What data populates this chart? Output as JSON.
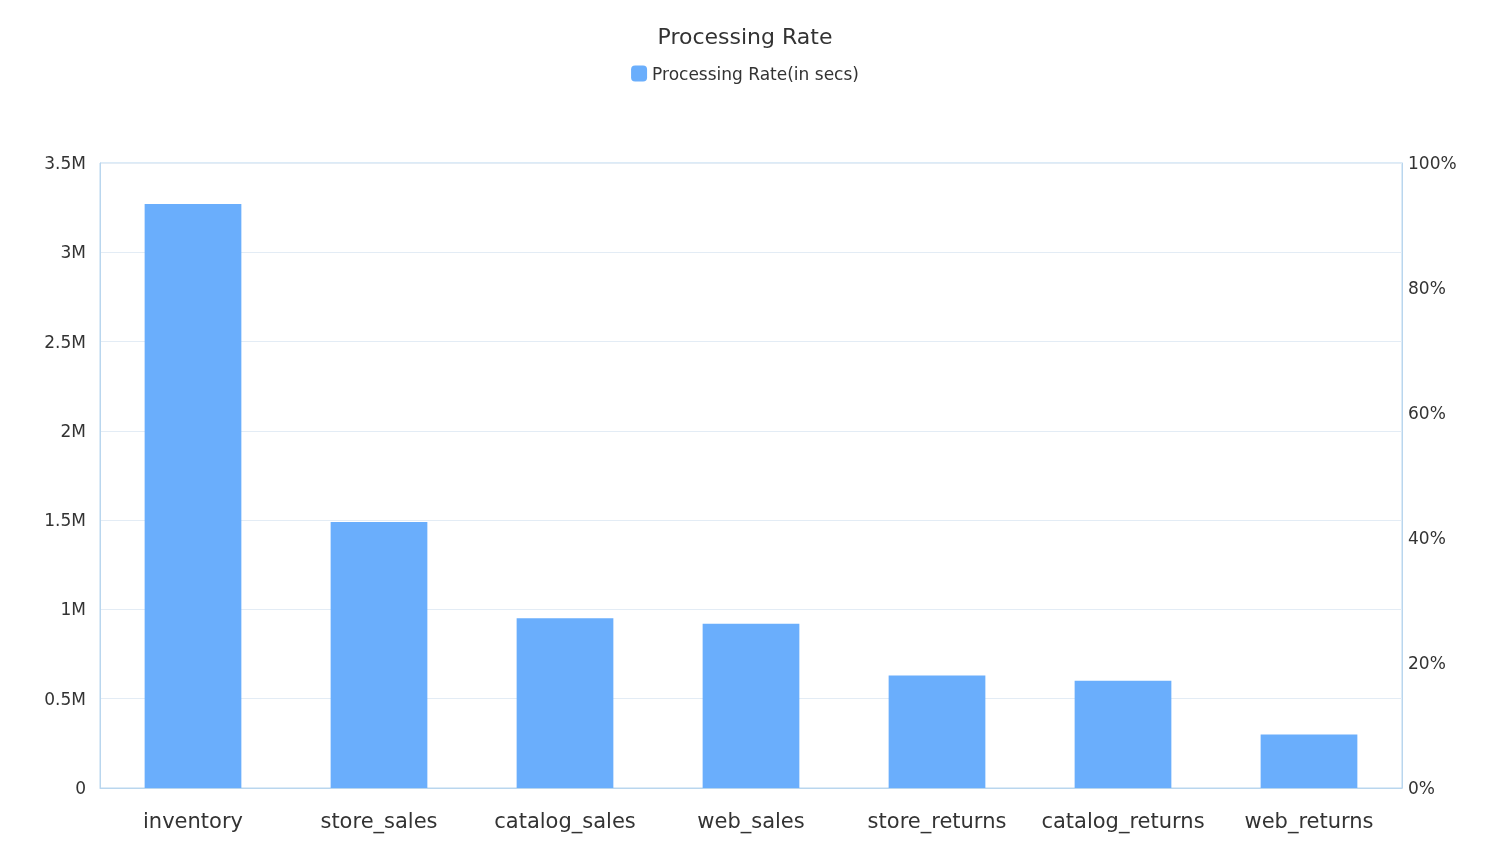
{
  "chart_data": {
    "type": "bar",
    "title": "Processing Rate",
    "categories": [
      "inventory",
      "store_sales",
      "catalog_sales",
      "web_sales",
      "store_returns",
      "catalog_returns",
      "web_returns"
    ],
    "series": [
      {
        "name": "Processing Rate(in secs)",
        "color": "#6aaefc",
        "values": [
          3270000,
          1490000,
          950000,
          920000,
          630000,
          600000,
          300000
        ]
      }
    ],
    "ylim": [
      0,
      3500000
    ],
    "yticks": [
      {
        "value": 0,
        "label": "0"
      },
      {
        "value": 500000,
        "label": "0.5M"
      },
      {
        "value": 1000000,
        "label": "1M"
      },
      {
        "value": 1500000,
        "label": "1.5M"
      },
      {
        "value": 2000000,
        "label": "2M"
      },
      {
        "value": 2500000,
        "label": "2.5M"
      },
      {
        "value": 3000000,
        "label": "3M"
      },
      {
        "value": 3500000,
        "label": "3.5M"
      }
    ],
    "y2lim": [
      0,
      100
    ],
    "y2ticks": [
      {
        "value": 0,
        "label": "0%"
      },
      {
        "value": 20,
        "label": "20%"
      },
      {
        "value": 40,
        "label": "40%"
      },
      {
        "value": 60,
        "label": "60%"
      },
      {
        "value": 80,
        "label": "80%"
      },
      {
        "value": 100,
        "label": "100%"
      }
    ],
    "grid": "y",
    "legend": "top"
  }
}
